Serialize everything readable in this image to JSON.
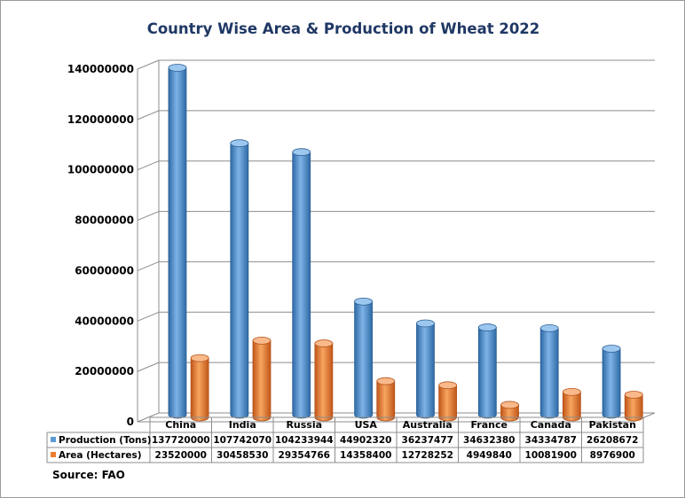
{
  "chart_data": {
    "type": "bar",
    "title": "Country Wise Area & Production of Wheat 2022",
    "categories": [
      "China",
      "India",
      "Russia",
      "USA",
      "Australia",
      "France",
      "Canada",
      "Pakistan"
    ],
    "series": [
      {
        "name": "Production (Tons)",
        "color": "#5b9bd5",
        "values": [
          137720000,
          107742070,
          104233944,
          44902320,
          36237477,
          34632380,
          34334787,
          26208672
        ]
      },
      {
        "name": "Area (Hectares)",
        "color": "#ed7d31",
        "values": [
          23520000,
          30458530,
          29354766,
          14358400,
          12728252,
          4949840,
          10081900,
          8976900
        ]
      }
    ],
    "ylim": [
      0,
      140000000
    ],
    "yticks": [
      "0",
      "20000000",
      "40000000",
      "60000000",
      "80000000",
      "100000000",
      "120000000",
      "140000000"
    ],
    "grid": true,
    "legend": "data-table",
    "source": "Source: FAO"
  }
}
